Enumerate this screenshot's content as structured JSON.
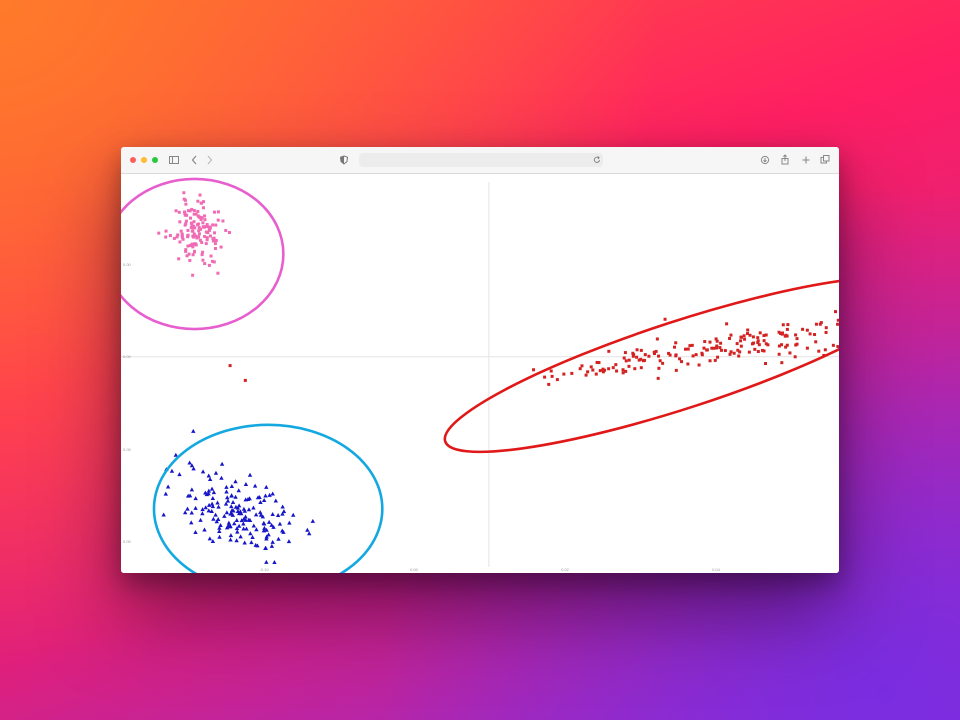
{
  "browser": {
    "icons": [
      "close-dot",
      "minimize-dot",
      "zoom-dot",
      "sidebar-icon",
      "back-icon",
      "forward-icon",
      "shield-icon",
      "reload-icon",
      "download-icon",
      "share-icon",
      "new-tab-icon",
      "tabs-overview-icon"
    ]
  },
  "chart_data": {
    "type": "scatter",
    "title": "",
    "xlabel": "",
    "ylabel": "",
    "xlim": [
      -1.45,
      1.38
    ],
    "ylim": [
      -2.19,
      1.85
    ],
    "x_ticks": [
      "-0.10",
      "0.00",
      "0.02",
      "0.04"
    ],
    "y_ticks": [
      "0.00",
      "0.00",
      "0.00",
      "0.00"
    ],
    "grid": "zero lines only",
    "legend": "none",
    "series": [
      {
        "color": "#f06ab4",
        "marker": "square",
        "ellipse_color": "#e75fcf",
        "center": [
          -1.15,
          1.27
        ],
        "spread": [
          0.055,
          0.16
        ],
        "corr": -0.1,
        "n": 140,
        "ellipse": {
          "cx": -1.16,
          "cy": 1.04,
          "rx": 0.35,
          "ry": 0.76,
          "angle": 0
        }
      },
      {
        "color": "#1616c8",
        "marker": "triangle",
        "ellipse_color": "#14a8e0",
        "center": [
          -0.98,
          -1.6
        ],
        "spread": [
          0.12,
          0.22
        ],
        "corr": -0.4,
        "n": 170,
        "ellipse": {
          "cx": -0.87,
          "cy": -1.54,
          "rx": 0.45,
          "ry": 0.85,
          "angle": 0
        }
      },
      {
        "color": "#d22222",
        "marker": "square",
        "ellipse_color": "#e01818",
        "center": [
          1.05,
          0.15
        ],
        "spread": [
          0.28,
          0.12
        ],
        "corr": 0.6,
        "n": 190,
        "ellipse": {
          "cx": 0.76,
          "cy": -0.08,
          "rx": 0.98,
          "ry": 0.44,
          "angle": -18
        }
      }
    ],
    "outliers": [
      {
        "x": -1.02,
        "y": -0.09,
        "color": "#d22222"
      },
      {
        "x": -0.96,
        "y": -0.24,
        "color": "#d22222"
      }
    ]
  }
}
